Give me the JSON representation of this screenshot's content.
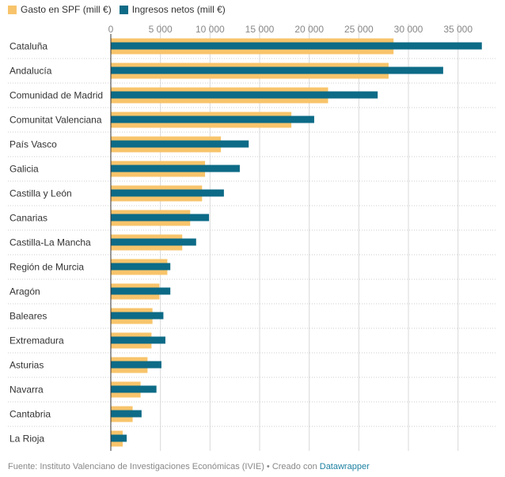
{
  "colors": {
    "spf": "#f8c46b",
    "net": "#0d6b87",
    "grid": "#d9d9d9",
    "dotted": "#cccccc",
    "axis": "#333333"
  },
  "legend": {
    "spf_label": "Gasto en SPF (mill €)",
    "net_label": "Ingresos netos (mill €)"
  },
  "footer": {
    "source_text": "Fuente: Instituto Valenciano de Investigaciones Económicas (IVIE) • Creado con ",
    "tool_link": "Datawrapper"
  },
  "chart_data": {
    "type": "bar",
    "orientation": "horizontal",
    "xlim": [
      0,
      37500
    ],
    "ticks": [
      0,
      5000,
      10000,
      15000,
      20000,
      25000,
      30000,
      35000
    ],
    "tick_labels": [
      "0",
      "5 000",
      "10 000",
      "15 000",
      "20 000",
      "25 000",
      "30 000",
      "35 000"
    ],
    "categories": [
      "Cataluña",
      "Andalucía",
      "Comunidad de Madrid",
      "Comunitat Valenciana",
      "País Vasco",
      "Galicia",
      "Castilla y León",
      "Canarias",
      "Castilla-La Mancha",
      "Región de Murcia",
      "Aragón",
      "Baleares",
      "Extremadura",
      "Asturias",
      "Navarra",
      "Cantabria",
      "La Rioja"
    ],
    "series": [
      {
        "name": "Gasto en SPF (mill €)",
        "values": [
          28500,
          28000,
          21900,
          18200,
          11100,
          9500,
          9200,
          8000,
          7200,
          5700,
          4900,
          4200,
          4100,
          3700,
          3000,
          2200,
          1200
        ]
      },
      {
        "name": "Ingresos netos (mill €)",
        "values": [
          37400,
          33500,
          26900,
          20500,
          13900,
          13000,
          11400,
          9900,
          8600,
          6000,
          6000,
          5300,
          5500,
          5100,
          4600,
          3100,
          1600
        ]
      }
    ]
  }
}
